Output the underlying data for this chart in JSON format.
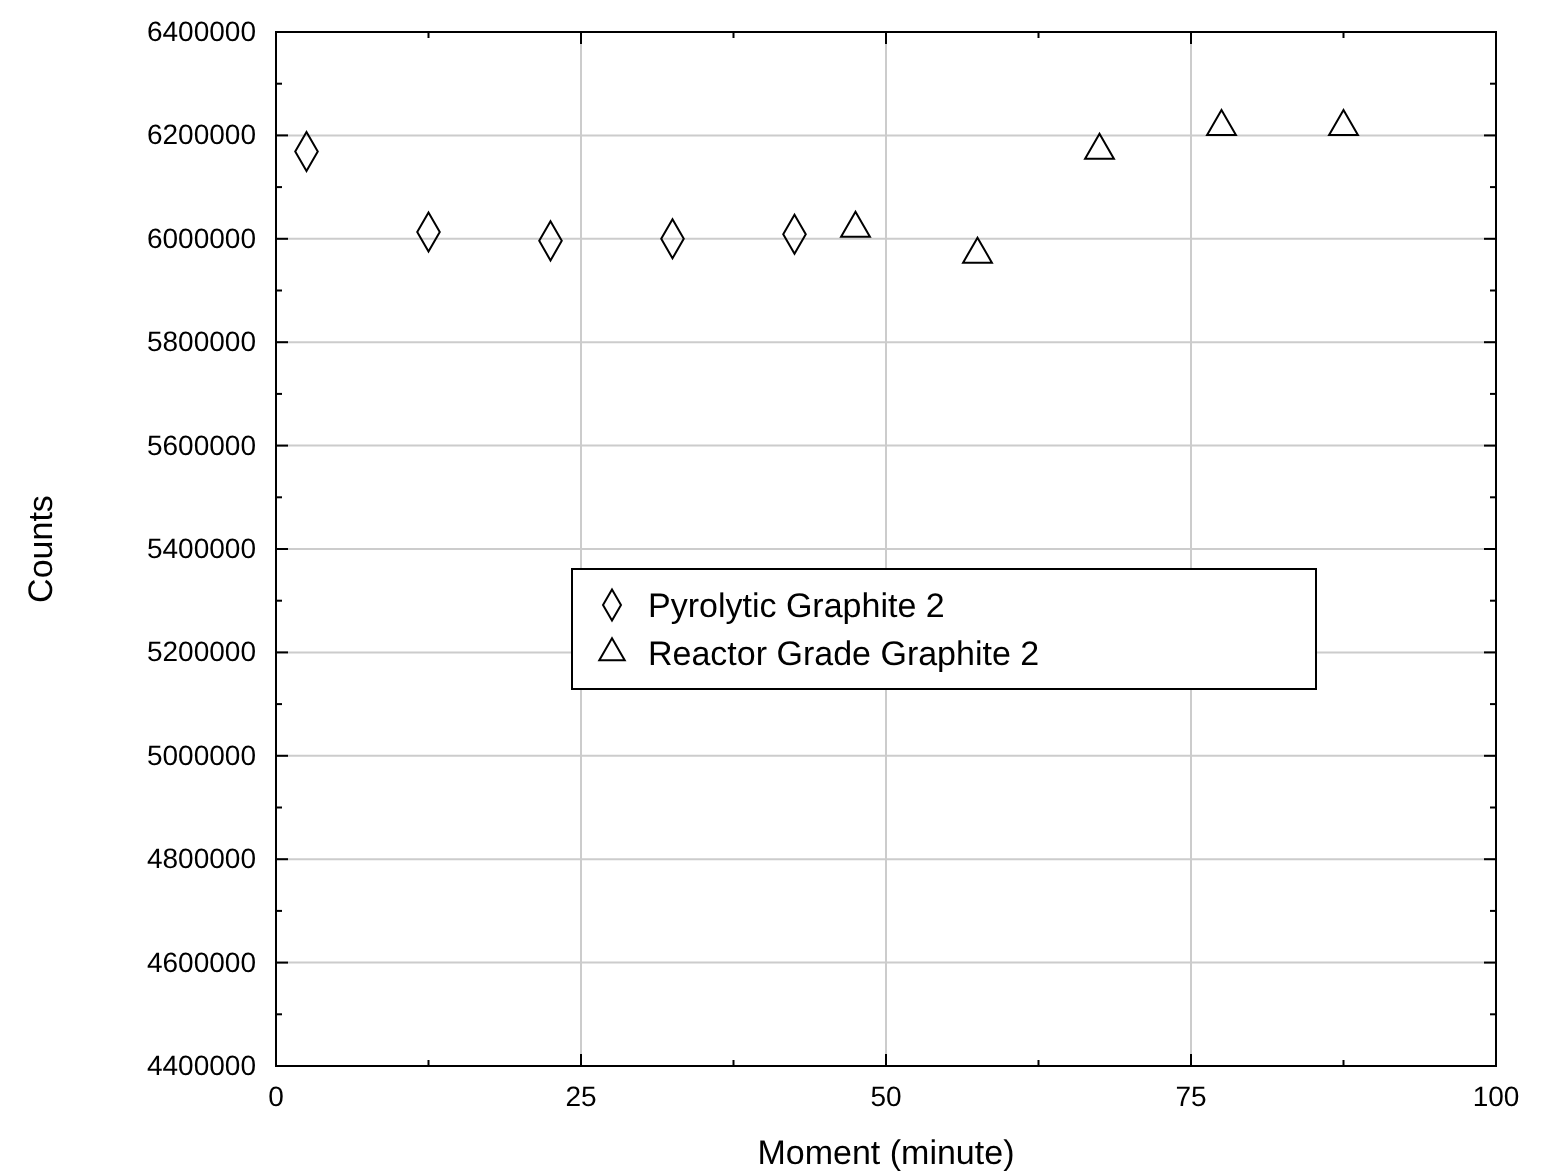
{
  "chart_data": {
    "type": "scatter",
    "xlabel": "Moment (minute)",
    "ylabel": "Counts",
    "xlim": [
      0,
      100
    ],
    "xticks": [
      0,
      25,
      50,
      75,
      100
    ],
    "ylim": [
      4400000,
      6400000
    ],
    "yticks": [
      4400000,
      4600000,
      4800000,
      5000000,
      5200000,
      5400000,
      5600000,
      5800000,
      6000000,
      6200000,
      6400000
    ],
    "grid": true,
    "legend": "center",
    "series": [
      {
        "name": "Pyrolytic Graphite 2",
        "color": "#000000",
        "marker": "diamond",
        "x": [
          2.5,
          12.5,
          22.5,
          32.5,
          42.5
        ],
        "values": [
          6169000,
          6013000,
          5996000,
          6000000,
          6009000
        ]
      },
      {
        "name": "Reactor Grade Graphite 2",
        "color": "#000000",
        "marker": "triangle",
        "x": [
          47.5,
          57.5,
          67.5,
          77.5,
          87.5
        ],
        "values": [
          6020000,
          5970000,
          6171000,
          6217000,
          6217000
        ]
      }
    ]
  }
}
